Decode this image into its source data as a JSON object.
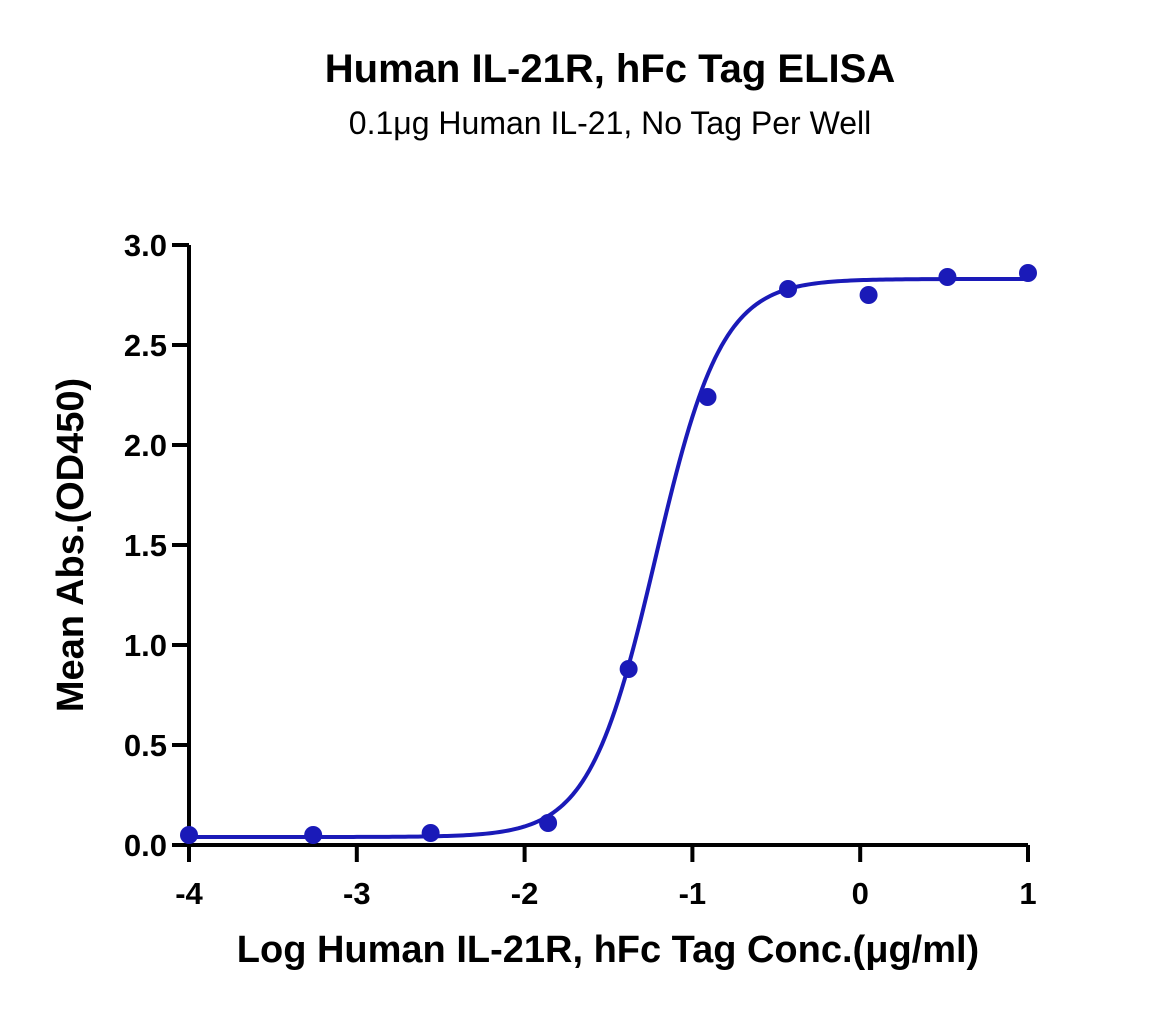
{
  "chart_data": {
    "type": "scatter",
    "title": "Human IL-21R, hFc Tag ELISA",
    "subtitle": "0.1μg Human IL-21, No Tag Per Well",
    "xlabel": "Log Human IL-21R, hFc Tag Conc.(μg/ml)",
    "ylabel": "Mean Abs.(OD450)",
    "xlim": [
      -4,
      1
    ],
    "ylim": [
      0,
      3
    ],
    "x_ticks": [
      -4,
      -3,
      -2,
      -1,
      0,
      1
    ],
    "x_tick_labels": [
      "-4",
      "-3",
      "-2",
      "-1",
      "0",
      "1"
    ],
    "y_ticks": [
      0,
      0.5,
      1,
      1.5,
      2,
      2.5,
      3
    ],
    "y_tick_labels": [
      "0.0",
      "0.5",
      "1.0",
      "1.5",
      "2.0",
      "2.5",
      "3.0"
    ],
    "grid": false,
    "legend": "none",
    "color": "#1a1ab8",
    "series": [
      {
        "x": [
          -4.0,
          -3.26,
          -2.56,
          -1.86,
          -1.38,
          -0.91,
          -0.43,
          0.05,
          0.52,
          1.0
        ],
        "y": [
          0.05,
          0.05,
          0.06,
          0.11,
          0.88,
          2.24,
          2.78,
          2.75,
          2.84,
          2.86
        ]
      }
    ],
    "fit": {
      "model": "4PL",
      "bottom": 0.04,
      "top": 2.83,
      "log_ec50": -1.22,
      "hill_slope": 2.2
    }
  }
}
